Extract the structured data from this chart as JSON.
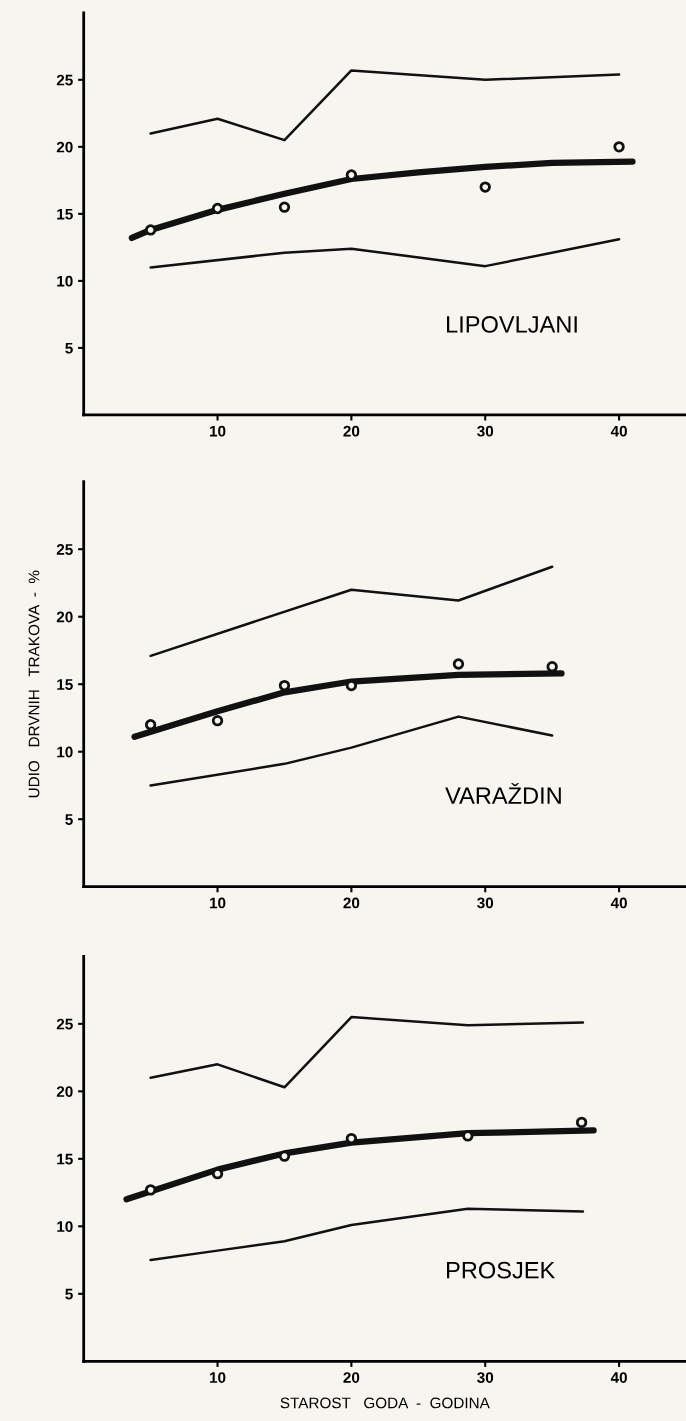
{
  "chart_data": [
    {
      "type": "line",
      "annotations": [
        "LIPOVLJANI"
      ],
      "xlim": [
        0,
        45
      ],
      "ylim": [
        0,
        30
      ],
      "xticks": [
        10,
        20,
        30,
        40
      ],
      "yticks": [
        5,
        10,
        15,
        20,
        25
      ],
      "grid": false,
      "legend": false,
      "series": [
        {
          "color": "#111111",
          "x": [
            5,
            10,
            15,
            20,
            30,
            40
          ],
          "values": [
            21.0,
            22.1,
            20.5,
            25.7,
            25.0,
            25.4
          ]
        },
        {
          "color": "#111111",
          "x": [
            5,
            15,
            20,
            30,
            40
          ],
          "values": [
            11.0,
            12.1,
            12.4,
            11.1,
            13.1
          ]
        },
        {
          "type": "scatter",
          "marker": "circle",
          "color": "#111111",
          "x": [
            5,
            10,
            15,
            20,
            30,
            40
          ],
          "values": [
            13.8,
            15.4,
            15.5,
            17.9,
            17.0,
            20.0
          ]
        },
        {
          "color": "#111111",
          "x": [
            3.6,
            5,
            10,
            15,
            20,
            25,
            30,
            35,
            41
          ],
          "values": [
            13.2,
            13.8,
            15.3,
            16.5,
            17.6,
            18.1,
            18.5,
            18.8,
            18.9
          ]
        }
      ]
    },
    {
      "type": "line",
      "ylabel": "UDIO   DRVNIH   TRAKOVA  -  %",
      "annotations": [
        "VARAŽDIN"
      ],
      "xlim": [
        0,
        45
      ],
      "ylim": [
        0,
        30
      ],
      "xticks": [
        10,
        20,
        30,
        40
      ],
      "yticks": [
        5,
        10,
        15,
        20,
        25
      ],
      "grid": false,
      "legend": false,
      "series": [
        {
          "color": "#111111",
          "x": [
            5,
            20,
            28,
            35
          ],
          "values": [
            17.1,
            22.0,
            21.2,
            23.7
          ]
        },
        {
          "color": "#111111",
          "x": [
            5,
            15,
            20,
            28,
            35
          ],
          "values": [
            7.5,
            9.1,
            10.3,
            12.6,
            11.2
          ]
        },
        {
          "type": "scatter",
          "marker": "circle",
          "color": "#111111",
          "x": [
            5,
            10,
            15,
            20,
            28,
            35
          ],
          "values": [
            12.0,
            12.3,
            14.9,
            14.9,
            16.5,
            16.3
          ]
        },
        {
          "color": "#111111",
          "x": [
            3.8,
            10,
            15,
            20,
            28,
            35.7
          ],
          "values": [
            11.1,
            13.0,
            14.4,
            15.2,
            15.7,
            15.8
          ]
        }
      ]
    },
    {
      "type": "line",
      "xlabel": "STAROST   GODA  -  GODINA",
      "annotations": [
        "PROSJEK"
      ],
      "xlim": [
        0,
        45
      ],
      "ylim": [
        0,
        30
      ],
      "xticks": [
        10,
        20,
        30,
        40
      ],
      "yticks": [
        5,
        10,
        15,
        20,
        25
      ],
      "grid": false,
      "legend": false,
      "series": [
        {
          "color": "#111111",
          "x": [
            5,
            10,
            15,
            20,
            28.7,
            37.3
          ],
          "values": [
            21.0,
            22.0,
            20.3,
            25.5,
            24.9,
            25.1
          ]
        },
        {
          "color": "#111111",
          "x": [
            5,
            10,
            15,
            20,
            28.7,
            37.3
          ],
          "values": [
            7.5,
            8.2,
            8.9,
            10.1,
            11.3,
            11.1
          ]
        },
        {
          "type": "scatter",
          "marker": "circle",
          "color": "#111111",
          "x": [
            5,
            10,
            15,
            20,
            28.7,
            37.2
          ],
          "values": [
            12.7,
            13.9,
            15.2,
            16.5,
            16.7,
            17.7
          ]
        },
        {
          "color": "#111111",
          "x": [
            3.2,
            10,
            15,
            20,
            28.7,
            38.1
          ],
          "values": [
            12.0,
            14.2,
            15.4,
            16.2,
            16.9,
            17.1
          ]
        }
      ]
    }
  ]
}
